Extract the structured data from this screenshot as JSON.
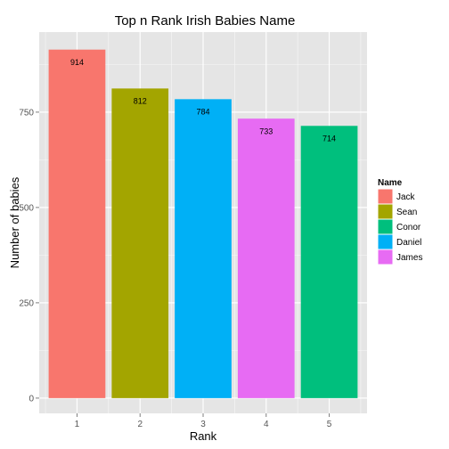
{
  "chart_data": {
    "type": "bar",
    "title": "Top n Rank Irish Babies Name",
    "xlabel": "Rank",
    "ylabel": "Number of babies",
    "categories": [
      "1",
      "2",
      "3",
      "4",
      "5"
    ],
    "values": [
      914,
      812,
      784,
      733,
      714
    ],
    "data_labels": [
      "914",
      "812",
      "784",
      "733",
      "714"
    ],
    "names": [
      "Jack",
      "Sean",
      "Daniel",
      "James",
      "Conor"
    ],
    "ylim": [
      -40,
      960
    ],
    "yticks": [
      0,
      250,
      500,
      750
    ],
    "ytick_labels": [
      "0",
      "250",
      "500",
      "750"
    ],
    "grid": true,
    "legend": {
      "title": "Name",
      "position": "right",
      "entries": [
        {
          "label": "Jack",
          "color": "#F8766D"
        },
        {
          "label": "Sean",
          "color": "#A3A500"
        },
        {
          "label": "Conor",
          "color": "#00BF7D"
        },
        {
          "label": "Daniel",
          "color": "#00B0F6"
        },
        {
          "label": "James",
          "color": "#E76BF3"
        }
      ]
    },
    "bar_colors": [
      "#F8766D",
      "#A3A500",
      "#00B0F6",
      "#E76BF3",
      "#00BF7D"
    ],
    "panel_background": "#E5E5E5",
    "gridline_color": "#FFFFFF"
  }
}
